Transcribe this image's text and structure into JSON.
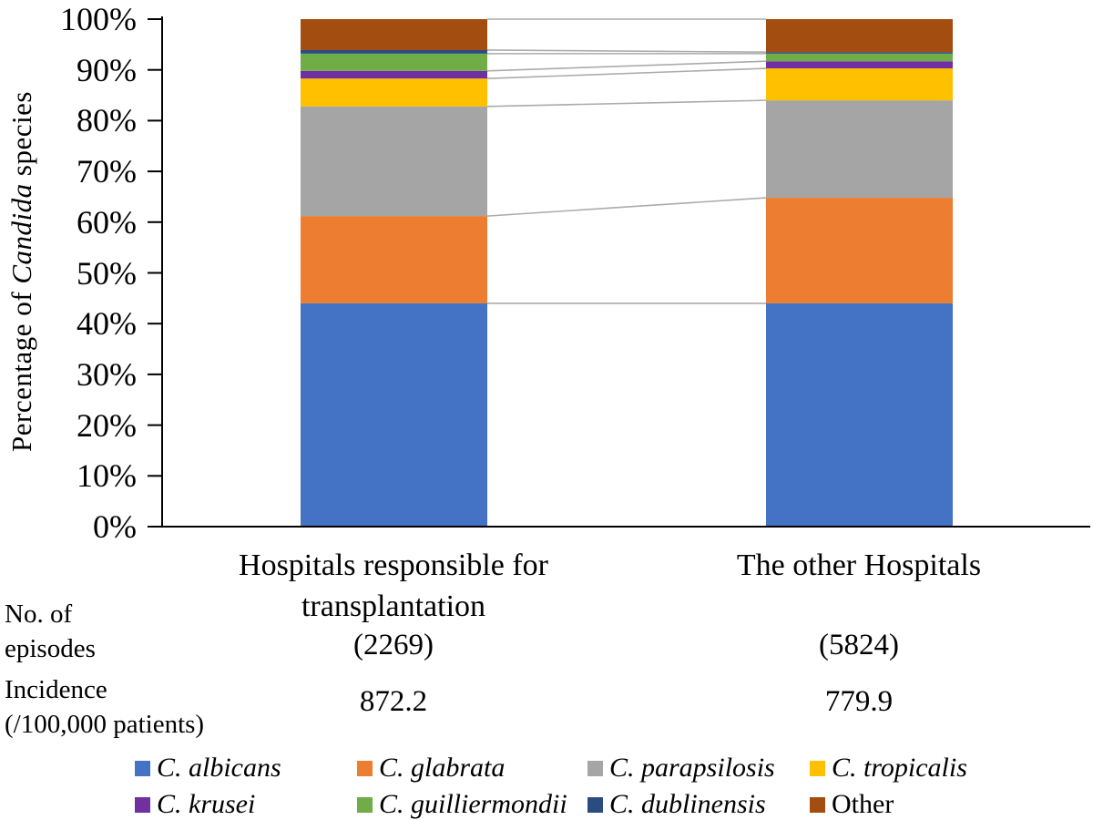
{
  "chart_data": {
    "type": "bar",
    "subtype": "percent-stacked-column",
    "ylabel_parts": [
      "Percentage of ",
      "Candida",
      " species"
    ],
    "yticks": [
      "0%",
      "10%",
      "20%",
      "30%",
      "40%",
      "50%",
      "60%",
      "70%",
      "80%",
      "90%",
      "100%"
    ],
    "ylim": [
      0,
      100
    ],
    "grid": false,
    "legend_position": "bottom",
    "categories": [
      {
        "label_lines": [
          "Hospitals responsible for",
          "transplantation"
        ],
        "episodes": "(2269)",
        "incidence": "872.2"
      },
      {
        "label_lines": [
          "The other Hospitals"
        ],
        "episodes": "(5824)",
        "incidence": "779.9"
      }
    ],
    "series": [
      {
        "name": "C. albicans",
        "italic": true,
        "color": "#4472C4",
        "values": [
          44.0,
          44.0
        ]
      },
      {
        "name": "C. glabrata",
        "italic": true,
        "color": "#ED7D31",
        "values": [
          17.2,
          20.8
        ]
      },
      {
        "name": "C. parapsilosis",
        "italic": true,
        "color": "#A5A5A5",
        "values": [
          21.6,
          19.2
        ]
      },
      {
        "name": "C. tropicalis",
        "italic": true,
        "color": "#FFC000",
        "values": [
          5.5,
          6.3
        ]
      },
      {
        "name": "C. krusei",
        "italic": true,
        "color": "#7030A0",
        "values": [
          1.5,
          1.4
        ]
      },
      {
        "name": "C. guilliermondii",
        "italic": true,
        "color": "#70AD47",
        "values": [
          3.4,
          1.5
        ]
      },
      {
        "name": "C. dublinensis",
        "italic": true,
        "color": "#2A4C80",
        "values": [
          0.7,
          0.3
        ]
      },
      {
        "name": "Other",
        "italic": false,
        "color": "#A34D11",
        "values": [
          6.1,
          6.5
        ]
      }
    ],
    "axis_color": "#000000",
    "connector_color": "#ABABAB",
    "legend_rows": [
      [
        0,
        1,
        2,
        3
      ],
      [
        4,
        5,
        6,
        7
      ]
    ]
  },
  "row_labels": {
    "episodes_line1": "No. of",
    "episodes_line2": "episodes",
    "incidence_line1": "Incidence",
    "incidence_line2": "(/100,000 patients)"
  }
}
